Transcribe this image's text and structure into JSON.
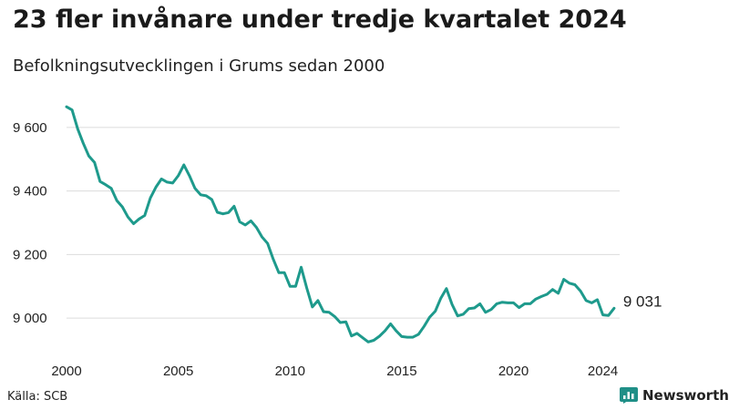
{
  "header": {
    "title": "23 fler invånare under tredje kvartalet 2024",
    "subtitle": "Befolkningsutvecklingen i Grums sedan 2000"
  },
  "footer": {
    "source": "Källa: SCB",
    "brand": "Newsworthy"
  },
  "colors": {
    "line": "#1e9a8c",
    "grid": "#dcdcdc",
    "brand": "#1f8f87"
  },
  "icons": {
    "brand_logo": "bar-chart-logo-icon"
  },
  "chart_data": {
    "type": "line",
    "title": "23 fler invånare under tredje kvartalet 2024",
    "subtitle": "Befolkningsutvecklingen i Grums sedan 2000",
    "xlabel": "",
    "ylabel": "",
    "xlim": [
      2000,
      2024.75
    ],
    "ylim": [
      8900,
      9700
    ],
    "grid": true,
    "x_ticks": [
      2000,
      2005,
      2010,
      2015,
      2020,
      2024
    ],
    "y_ticks": [
      {
        "value": 9000,
        "label": "9 000"
      },
      {
        "value": 9200,
        "label": "9 200"
      },
      {
        "value": 9400,
        "label": "9 400"
      },
      {
        "value": 9600,
        "label": "9 600"
      }
    ],
    "last_value_label": "9 031",
    "series": [
      {
        "x": [
          2000.0,
          2000.25,
          2000.5,
          2000.75,
          2001.0,
          2001.25,
          2001.5,
          2001.75,
          2002.0,
          2002.25,
          2002.5,
          2002.75,
          2003.0,
          2003.25,
          2003.5,
          2003.75,
          2004.0,
          2004.25,
          2004.5,
          2004.75,
          2005.0,
          2005.25,
          2005.5,
          2005.75,
          2006.0,
          2006.25,
          2006.5,
          2006.75,
          2007.0,
          2007.25,
          2007.5,
          2007.75,
          2008.0,
          2008.25,
          2008.5,
          2008.75,
          2009.0,
          2009.25,
          2009.5,
          2009.75,
          2010.0,
          2010.25,
          2010.5,
          2010.75,
          2011.0,
          2011.25,
          2011.5,
          2011.75,
          2012.0,
          2012.25,
          2012.5,
          2012.75,
          2013.0,
          2013.25,
          2013.5,
          2013.75,
          2014.0,
          2014.25,
          2014.5,
          2014.75,
          2015.0,
          2015.25,
          2015.5,
          2015.75,
          2016.0,
          2016.25,
          2016.5,
          2016.75,
          2017.0,
          2017.25,
          2017.5,
          2017.75,
          2018.0,
          2018.25,
          2018.5,
          2018.75,
          2019.0,
          2019.25,
          2019.5,
          2019.75,
          2020.0,
          2020.25,
          2020.5,
          2020.75,
          2021.0,
          2021.25,
          2021.5,
          2021.75,
          2022.0,
          2022.25,
          2022.5,
          2022.75,
          2023.0,
          2023.25,
          2023.5,
          2023.75,
          2024.0,
          2024.25,
          2024.5
        ],
        "values": [
          9665,
          9655,
          9595,
          9550,
          9510,
          9490,
          9430,
          9420,
          9408,
          9370,
          9350,
          9318,
          9297,
          9312,
          9323,
          9378,
          9412,
          9438,
          9428,
          9425,
          9448,
          9482,
          9448,
          9408,
          9388,
          9385,
          9373,
          9333,
          9328,
          9332,
          9352,
          9303,
          9293,
          9306,
          9285,
          9255,
          9235,
          9185,
          9143,
          9143,
          9100,
          9100,
          9160,
          9095,
          9035,
          9055,
          9020,
          9018,
          9005,
          8986,
          8988,
          8944,
          8952,
          8938,
          8925,
          8930,
          8943,
          8960,
          8982,
          8960,
          8942,
          8940,
          8940,
          8949,
          8974,
          9003,
          9022,
          9063,
          9093,
          9043,
          9007,
          9012,
          9030,
          9032,
          9045,
          9018,
          9027,
          9045,
          9050,
          9048,
          9048,
          9033,
          9045,
          9045,
          9060,
          9068,
          9075,
          9090,
          9078,
          9122,
          9110,
          9105,
          9085,
          9055,
          9048,
          9058,
          9010,
          9008,
          9031
        ]
      }
    ]
  }
}
